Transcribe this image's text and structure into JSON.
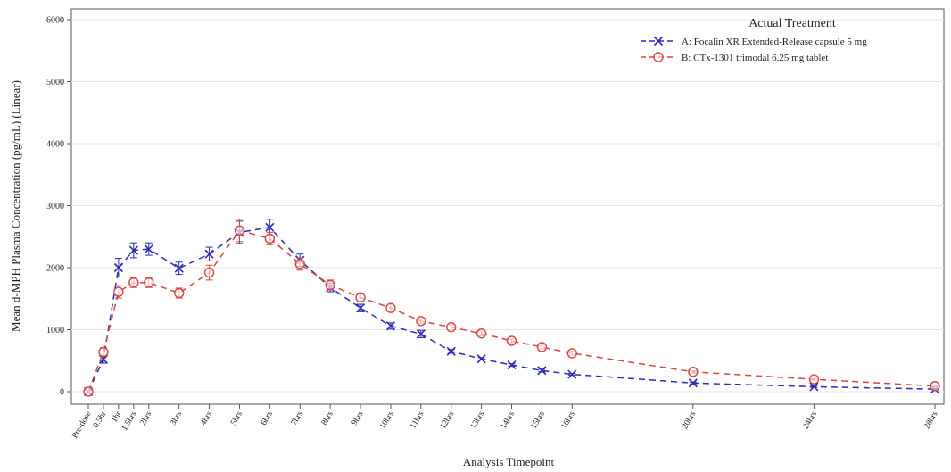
{
  "chart_data": {
    "type": "line",
    "title": "",
    "xlabel": "Analysis Timepoint",
    "ylabel": "Mean d-MPH Plasma Concentration (pg/mL) (Linear)",
    "ylim": [
      0,
      6000
    ],
    "yticks": [
      0,
      1000,
      2000,
      3000,
      4000,
      5000,
      6000
    ],
    "x_hours": [
      0,
      0.5,
      1,
      1.5,
      2,
      3,
      4,
      5,
      6,
      7,
      8,
      9,
      10,
      11,
      12,
      13,
      14,
      15,
      16,
      20,
      24,
      28
    ],
    "categories": [
      "Pre-dose",
      "0.5hr",
      "1hr",
      "1.5hrs",
      "2hrs",
      "3hrs",
      "4hrs",
      "5hrs",
      "6hrs",
      "7hrs",
      "8hrs",
      "9hrs",
      "10hrs",
      "11hrs",
      "12hrs",
      "13hrs",
      "14hrs",
      "15hrs",
      "16hrs",
      "20hrs",
      "24hrs",
      "28hrs"
    ],
    "grid": true,
    "legend": {
      "title": "Actual Treatment",
      "position": "top-right"
    },
    "series": [
      {
        "name": "A: Focalin XR Extended-Release capsule 5 mg",
        "color": "#2b2bb5",
        "marker": "x",
        "values": [
          0,
          520,
          2000,
          2280,
          2300,
          1990,
          2220,
          2570,
          2650,
          2120,
          1680,
          1350,
          1060,
          930,
          650,
          530,
          430,
          340,
          280,
          140,
          80,
          40
        ],
        "errors": [
          20,
          60,
          150,
          120,
          100,
          100,
          110,
          180,
          130,
          100,
          70,
          60,
          50,
          60,
          30,
          20,
          20,
          20,
          15,
          15,
          10,
          10
        ]
      },
      {
        "name": "B: CTx-1301 trimodal 6.25 mg tablet",
        "color": "#d64545",
        "marker": "o",
        "values": [
          0,
          640,
          1610,
          1760,
          1760,
          1590,
          1920,
          2600,
          2470,
          2060,
          1720,
          1520,
          1350,
          1140,
          1040,
          940,
          820,
          720,
          620,
          320,
          200,
          90
        ],
        "errors": [
          20,
          70,
          100,
          80,
          80,
          80,
          120,
          180,
          100,
          100,
          80,
          70,
          60,
          40,
          40,
          40,
          30,
          30,
          30,
          20,
          15,
          10
        ]
      }
    ]
  }
}
